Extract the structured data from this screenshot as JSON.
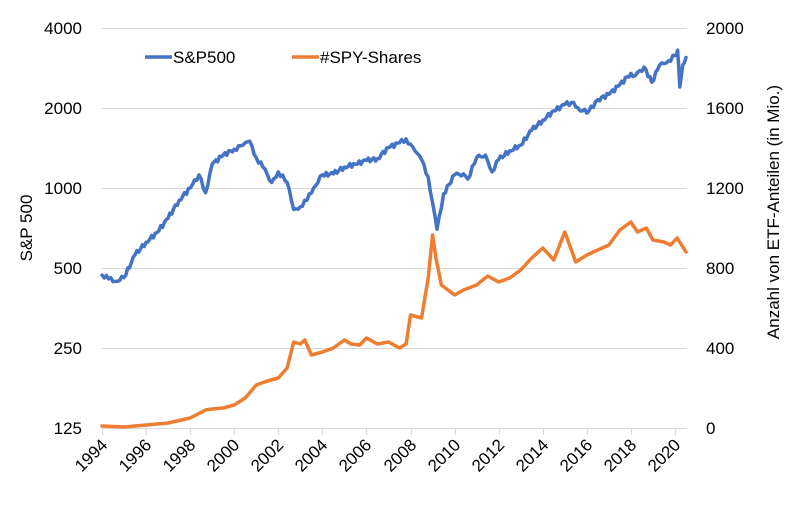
{
  "chart_data": {
    "type": "line",
    "title": "",
    "xlabel": "",
    "ylabel": "S&P 500",
    "ylabel_right": "Anzahl von ETF-Anteilen (in Mio.)",
    "grid": true,
    "legend_position": "top-left",
    "x_range": [
      1994,
      2020.5
    ],
    "x_ticks": [
      "1994",
      "1996",
      "1998",
      "2000",
      "2002",
      "2004",
      "2006",
      "2008",
      "2010",
      "2012",
      "2014",
      "2016",
      "2018",
      "2020"
    ],
    "y_left": {
      "scale": "log2",
      "range": [
        125,
        4000
      ],
      "ticks": [
        "125",
        "250",
        "500",
        "1000",
        "2000",
        "4000"
      ]
    },
    "y_right": {
      "scale": "linear",
      "range": [
        0,
        2000
      ],
      "ticks": [
        "0",
        "400",
        "800",
        "1200",
        "1600",
        "2000"
      ]
    },
    "series": [
      {
        "name": "S&P500",
        "axis": "left",
        "color": "#4472c4",
        "x": [
          1994.0,
          1994.3,
          1994.6,
          1995.0,
          1995.5,
          1996.0,
          1996.5,
          1997.0,
          1997.5,
          1998.0,
          1998.4,
          1998.7,
          1999.0,
          1999.5,
          2000.0,
          2000.4,
          2000.7,
          2001.0,
          2001.3,
          2001.7,
          2002.0,
          2002.4,
          2002.7,
          2003.0,
          2003.3,
          2003.6,
          2004.0,
          2004.5,
          2005.0,
          2005.5,
          2006.0,
          2006.5,
          2007.0,
          2007.5,
          2007.8,
          2008.2,
          2008.5,
          2008.8,
          2009.0,
          2009.2,
          2009.5,
          2010.0,
          2010.4,
          2010.6,
          2011.0,
          2011.4,
          2011.7,
          2012.0,
          2012.5,
          2013.0,
          2013.5,
          2014.0,
          2014.5,
          2015.0,
          2015.4,
          2015.7,
          2016.1,
          2016.5,
          2017.0,
          2017.5,
          2018.0,
          2018.2,
          2018.6,
          2018.95,
          2019.3,
          2019.6,
          2020.0,
          2020.12,
          2020.22,
          2020.35,
          2020.5
        ],
        "values": [
          470,
          455,
          445,
          460,
          560,
          625,
          680,
          770,
          900,
          1000,
          1120,
          960,
          1230,
          1330,
          1400,
          1450,
          1500,
          1300,
          1200,
          1050,
          1150,
          1050,
          830,
          850,
          900,
          1000,
          1120,
          1130,
          1200,
          1230,
          1270,
          1290,
          1420,
          1480,
          1530,
          1380,
          1280,
          1100,
          880,
          700,
          950,
          1120,
          1130,
          1080,
          1300,
          1330,
          1150,
          1280,
          1380,
          1450,
          1650,
          1800,
          1950,
          2060,
          2100,
          1950,
          1950,
          2150,
          2250,
          2450,
          2700,
          2650,
          2850,
          2500,
          2900,
          2950,
          3150,
          3300,
          2400,
          2900,
          3100
        ]
      },
      {
        "name": "#SPY-Shares",
        "axis": "right",
        "color": "#ed7d31",
        "x": [
          1994.0,
          1995.0,
          1996.0,
          1997.0,
          1998.0,
          1998.7,
          1999.0,
          1999.5,
          2000.0,
          2000.5,
          2001.0,
          2001.5,
          2002.0,
          2002.4,
          2002.7,
          2003.0,
          2003.2,
          2003.5,
          2004.0,
          2004.5,
          2005.0,
          2005.3,
          2005.7,
          2006.0,
          2006.5,
          2007.0,
          2007.5,
          2007.8,
          2008.0,
          2008.5,
          2008.8,
          2009.0,
          2009.15,
          2009.4,
          2010.0,
          2010.4,
          2011.0,
          2011.5,
          2012.0,
          2012.5,
          2013.0,
          2013.5,
          2014.0,
          2014.5,
          2015.0,
          2015.5,
          2016.0,
          2016.5,
          2017.0,
          2017.5,
          2018.0,
          2018.3,
          2018.7,
          2019.0,
          2019.5,
          2019.8,
          2020.1,
          2020.5
        ],
        "values": [
          10,
          5,
          15,
          25,
          50,
          90,
          95,
          100,
          115,
          150,
          215,
          235,
          250,
          300,
          430,
          420,
          440,
          365,
          380,
          400,
          440,
          420,
          415,
          450,
          420,
          430,
          400,
          420,
          565,
          550,
          750,
          965,
          850,
          715,
          665,
          690,
          715,
          760,
          730,
          750,
          790,
          850,
          900,
          840,
          980,
          830,
          865,
          890,
          915,
          990,
          1030,
          980,
          1000,
          940,
          930,
          915,
          950,
          880
        ]
      }
    ]
  }
}
